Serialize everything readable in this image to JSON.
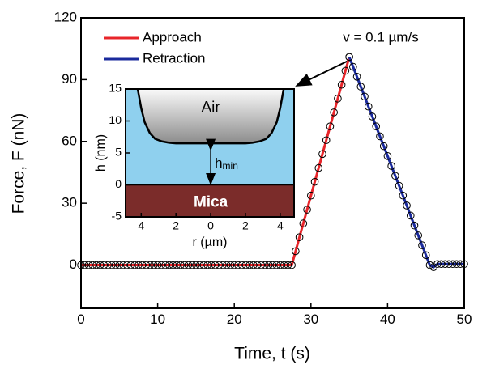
{
  "chart_data": [
    {
      "type": "line",
      "x_label": "Time, t (s)",
      "y_label": "Force, F (nN)",
      "annotation": "v = 0.1 µm/s",
      "xlim": [
        0,
        50
      ],
      "xticks": [
        0,
        10,
        20,
        30,
        40,
        50
      ],
      "ylim": [
        -21,
        120
      ],
      "yticks": [
        0,
        30,
        60,
        90,
        120
      ],
      "legend": "upper left",
      "marker_color": "#000000",
      "series": [
        {
          "name": "Approach",
          "color": "#e8252a",
          "x": [
            0,
            0.5,
            1,
            1.5,
            2,
            2.5,
            3,
            3.5,
            4,
            4.5,
            5,
            5.5,
            6,
            6.5,
            7,
            7.5,
            8,
            8.5,
            9,
            9.5,
            10,
            10.5,
            11,
            11.5,
            12,
            12.5,
            13,
            13.5,
            14,
            14.5,
            15,
            15.5,
            16,
            16.5,
            17,
            17.5,
            18,
            18.5,
            19,
            19.5,
            20,
            20.5,
            21,
            21.5,
            22,
            22.5,
            23,
            23.5,
            24,
            24.5,
            25,
            25.5,
            26,
            26.5,
            27,
            27.5,
            28,
            28.5,
            29,
            29.5,
            30,
            30.5,
            31,
            31.5,
            32,
            32.5,
            33,
            33.5,
            34,
            34.5,
            35
          ],
          "values": [
            0,
            0,
            0,
            0,
            0,
            0,
            0,
            0,
            0,
            0,
            0,
            0,
            0,
            0,
            0,
            0,
            0,
            0,
            0,
            0,
            0,
            0,
            0,
            0,
            0,
            0,
            0,
            0,
            0,
            0,
            0,
            0,
            0,
            0,
            0,
            0,
            0,
            0,
            0,
            0,
            0,
            0,
            0,
            0,
            0,
            0,
            0,
            0,
            0,
            0,
            0,
            0,
            0,
            0,
            0,
            0,
            6.7,
            13.5,
            20.2,
            26.9,
            33.7,
            40.4,
            47.1,
            53.9,
            60.6,
            67.3,
            74.1,
            80.8,
            87.5,
            94.3,
            101
          ]
        },
        {
          "name": "Retraction",
          "color": "#1a2a9c",
          "x": [
            35,
            35.5,
            36,
            36.5,
            37,
            37.5,
            38,
            38.5,
            39,
            39.5,
            40,
            40.5,
            41,
            41.5,
            42,
            42.5,
            43,
            43.5,
            44,
            44.5,
            45,
            45.5,
            46,
            46.5,
            47,
            47.5,
            48,
            48.5,
            49,
            49.5,
            50
          ],
          "values": [
            101,
            96.2,
            91.4,
            86.6,
            81.8,
            76.9,
            72.1,
            67.3,
            62.5,
            57.7,
            52.9,
            48.1,
            43.3,
            38.5,
            33.7,
            28.9,
            24,
            19.2,
            14.4,
            9.6,
            4.8,
            0,
            -1,
            0.5,
            0.5,
            0.5,
            0.5,
            0.5,
            0.5,
            0.5,
            0.5
          ]
        }
      ]
    },
    {
      "type": "profile",
      "x_label": "r (µm)",
      "y_label": "h (nm)",
      "xlim": [
        -4.9,
        4.8
      ],
      "xticks": [
        {
          "value": -4,
          "label": "4"
        },
        {
          "value": -2,
          "label": "2"
        },
        0,
        2,
        4
      ],
      "ylim": [
        -5,
        15
      ],
      "yticks": [
        -5,
        0,
        5,
        10,
        15
      ],
      "region_labels": [
        "Air",
        "Mica"
      ],
      "gap_label": [
        "h",
        "min"
      ],
      "colors": {
        "water": "#8fd0ee",
        "mica": "#7b2c2a",
        "air_top": "#fafafa",
        "air_bottom": "#8c8c8c"
      },
      "series": [
        {
          "color": "#000000",
          "x": [
            -4.2,
            -4,
            -3.8,
            -3.5,
            -3.2,
            -2.8,
            -2.4,
            -2,
            0,
            2,
            2.4,
            2.8,
            3.2,
            3.5,
            3.8,
            4,
            4.2
          ],
          "values": [
            15,
            12,
            9.8,
            8.1,
            7.2,
            6.8,
            6.6,
            6.5,
            6.5,
            6.5,
            6.6,
            6.8,
            7.2,
            8.1,
            9.8,
            12,
            15
          ]
        }
      ]
    }
  ]
}
